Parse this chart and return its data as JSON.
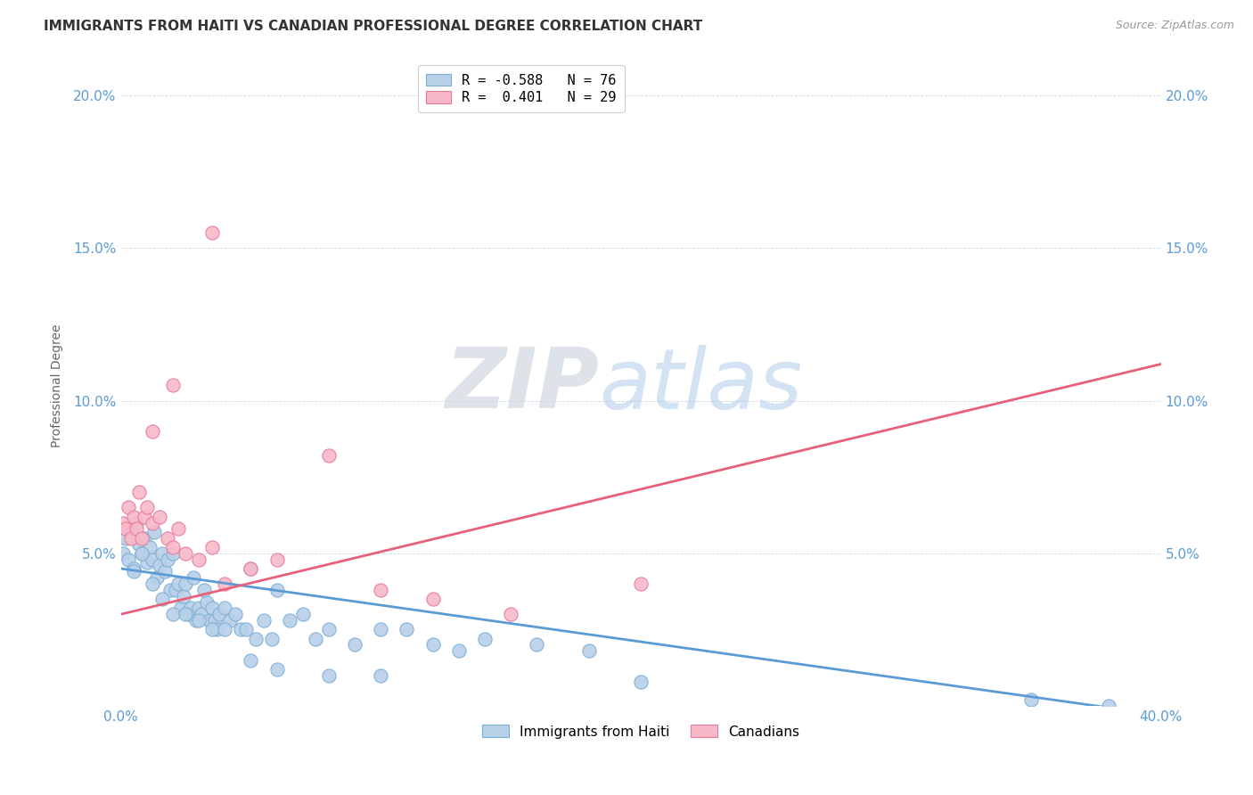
{
  "title": "IMMIGRANTS FROM HAITI VS CANADIAN PROFESSIONAL DEGREE CORRELATION CHART",
  "source": "Source: ZipAtlas.com",
  "ylabel": "Professional Degree",
  "xlim": [
    0.0,
    0.4
  ],
  "ylim": [
    0.0,
    0.21
  ],
  "blue_color": "#b8d0e8",
  "pink_color": "#f8b8c8",
  "blue_edge_color": "#7aaed4",
  "pink_edge_color": "#e87898",
  "blue_line_color": "#5b9bd5",
  "pink_line_color": "#e8607a",
  "r_blue": -0.588,
  "n_blue": 76,
  "r_pink": 0.401,
  "n_pink": 29,
  "watermark_zip": "ZIP",
  "watermark_atlas": "atlas",
  "legend_entries": [
    "Immigrants from Haiti",
    "Canadians"
  ],
  "blue_line_x": [
    0.0,
    0.4
  ],
  "blue_line_y": [
    0.045,
    -0.003
  ],
  "pink_line_x": [
    0.0,
    0.4
  ],
  "pink_line_y": [
    0.03,
    0.112
  ],
  "blue_points_x": [
    0.001,
    0.002,
    0.003,
    0.004,
    0.005,
    0.006,
    0.007,
    0.008,
    0.009,
    0.01,
    0.011,
    0.012,
    0.013,
    0.014,
    0.015,
    0.016,
    0.017,
    0.018,
    0.019,
    0.02,
    0.021,
    0.022,
    0.023,
    0.024,
    0.025,
    0.026,
    0.027,
    0.028,
    0.029,
    0.03,
    0.031,
    0.032,
    0.033,
    0.034,
    0.035,
    0.036,
    0.037,
    0.038,
    0.04,
    0.042,
    0.044,
    0.046,
    0.048,
    0.05,
    0.052,
    0.055,
    0.058,
    0.06,
    0.065,
    0.07,
    0.075,
    0.08,
    0.09,
    0.1,
    0.11,
    0.12,
    0.13,
    0.14,
    0.16,
    0.18,
    0.005,
    0.008,
    0.012,
    0.016,
    0.02,
    0.025,
    0.03,
    0.035,
    0.04,
    0.05,
    0.06,
    0.08,
    0.1,
    0.2,
    0.35,
    0.38
  ],
  "blue_points_y": [
    0.05,
    0.055,
    0.048,
    0.058,
    0.045,
    0.06,
    0.053,
    0.05,
    0.055,
    0.047,
    0.052,
    0.048,
    0.057,
    0.042,
    0.046,
    0.05,
    0.044,
    0.048,
    0.038,
    0.05,
    0.038,
    0.04,
    0.032,
    0.036,
    0.04,
    0.03,
    0.032,
    0.042,
    0.028,
    0.032,
    0.03,
    0.038,
    0.034,
    0.028,
    0.032,
    0.028,
    0.025,
    0.03,
    0.032,
    0.028,
    0.03,
    0.025,
    0.025,
    0.045,
    0.022,
    0.028,
    0.022,
    0.038,
    0.028,
    0.03,
    0.022,
    0.025,
    0.02,
    0.025,
    0.025,
    0.02,
    0.018,
    0.022,
    0.02,
    0.018,
    0.044,
    0.05,
    0.04,
    0.035,
    0.03,
    0.03,
    0.028,
    0.025,
    0.025,
    0.015,
    0.012,
    0.01,
    0.01,
    0.008,
    0.002,
    0.0
  ],
  "pink_points_x": [
    0.001,
    0.002,
    0.003,
    0.004,
    0.005,
    0.006,
    0.007,
    0.008,
    0.009,
    0.01,
    0.012,
    0.015,
    0.018,
    0.02,
    0.022,
    0.025,
    0.03,
    0.035,
    0.04,
    0.05,
    0.06,
    0.08,
    0.1,
    0.12,
    0.15,
    0.2,
    0.012,
    0.02,
    0.035
  ],
  "pink_points_y": [
    0.06,
    0.058,
    0.065,
    0.055,
    0.062,
    0.058,
    0.07,
    0.055,
    0.062,
    0.065,
    0.06,
    0.062,
    0.055,
    0.052,
    0.058,
    0.05,
    0.048,
    0.052,
    0.04,
    0.045,
    0.048,
    0.082,
    0.038,
    0.035,
    0.03,
    0.04,
    0.09,
    0.105,
    0.155
  ]
}
